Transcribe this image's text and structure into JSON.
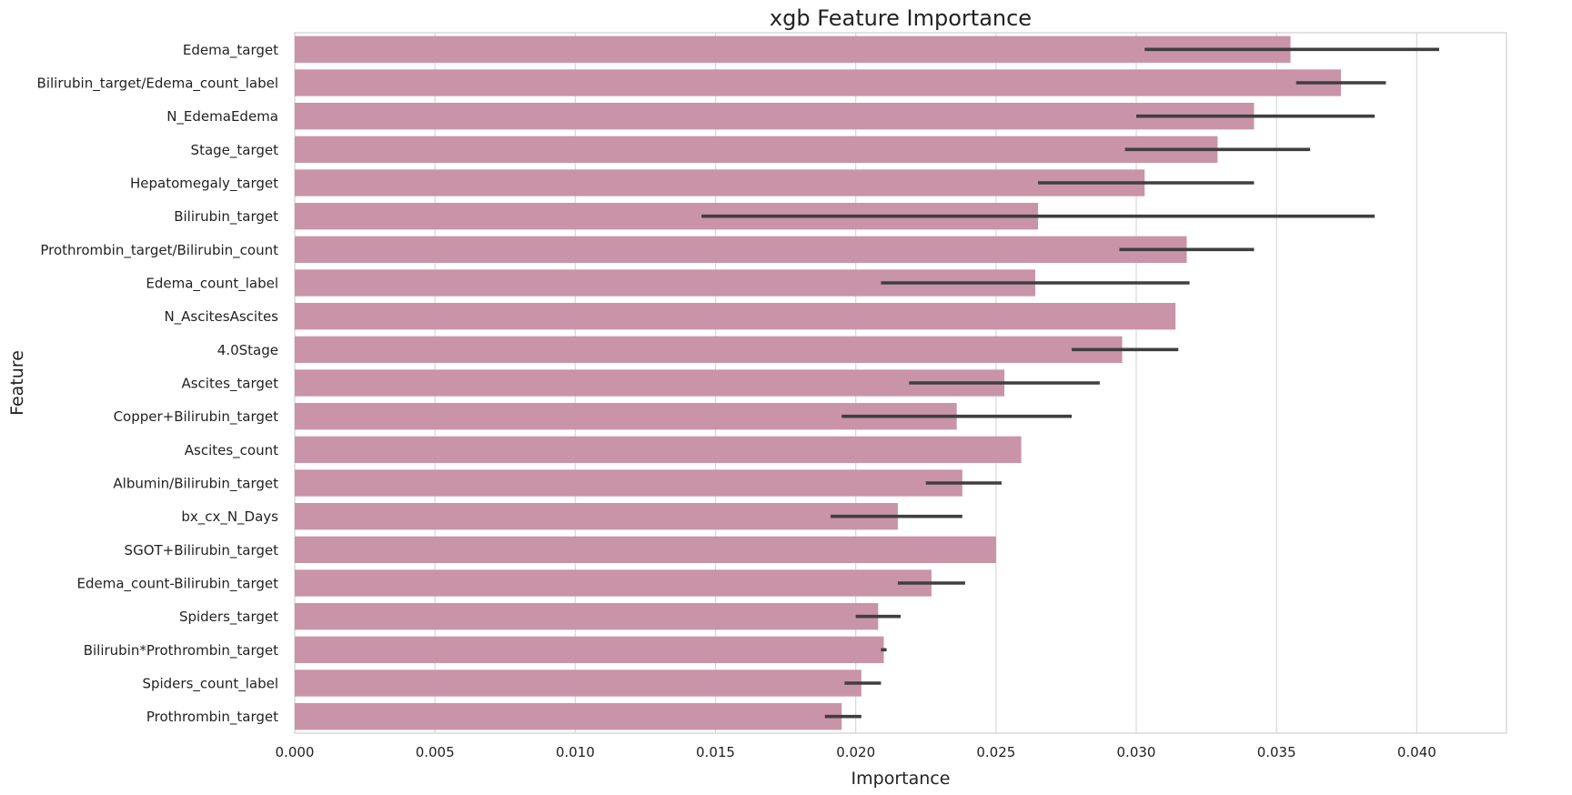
{
  "chart_data": {
    "type": "bar",
    "orientation": "horizontal",
    "title": "xgb Feature Importance",
    "xlabel": "Importance",
    "ylabel": "Feature",
    "xlim": [
      0,
      0.0432
    ],
    "xticks": [
      "0.000",
      "0.005",
      "0.010",
      "0.015",
      "0.020",
      "0.025",
      "0.030",
      "0.035",
      "0.040"
    ],
    "grid": "vertical",
    "bar_color": "#c994a7",
    "error_bar_color": "#3f3f3f",
    "categories": [
      "Edema_target",
      "Bilirubin_target/Edema_count_label",
      "N_EdemaEdema",
      "Stage_target",
      "Hepatomegaly_target",
      "Bilirubin_target",
      "Prothrombin_target/Bilirubin_count",
      "Edema_count_label",
      "N_AscitesAscites",
      "4.0Stage",
      "Ascites_target",
      "Copper+Bilirubin_target",
      "Ascites_count",
      "Albumin/Bilirubin_target",
      "bx_cx_N_Days",
      "SGOT+Bilirubin_target",
      "Edema_count-Bilirubin_target",
      "Spiders_target",
      "Bilirubin*Prothrombin_target",
      "Spiders_count_label",
      "Prothrombin_target"
    ],
    "values": [
      0.0355,
      0.0373,
      0.0342,
      0.0329,
      0.0303,
      0.0265,
      0.0318,
      0.0264,
      0.0314,
      0.0295,
      0.0253,
      0.0236,
      0.0259,
      0.0238,
      0.0215,
      0.025,
      0.0227,
      0.0208,
      0.021,
      0.0202,
      0.0195
    ],
    "error_low": [
      0.0303,
      0.0357,
      0.03,
      0.0296,
      0.0265,
      0.0145,
      0.0294,
      0.0209,
      null,
      0.0277,
      0.0219,
      0.0195,
      null,
      0.0225,
      0.0191,
      null,
      0.0215,
      0.02,
      0.0209,
      0.0196,
      0.0189
    ],
    "error_high": [
      0.0408,
      0.0389,
      0.0385,
      0.0362,
      0.0342,
      0.0385,
      0.0342,
      0.0319,
      null,
      0.0315,
      0.0287,
      0.0277,
      null,
      0.0252,
      0.0238,
      null,
      0.0239,
      0.0216,
      0.0211,
      0.0209,
      0.0202
    ]
  }
}
